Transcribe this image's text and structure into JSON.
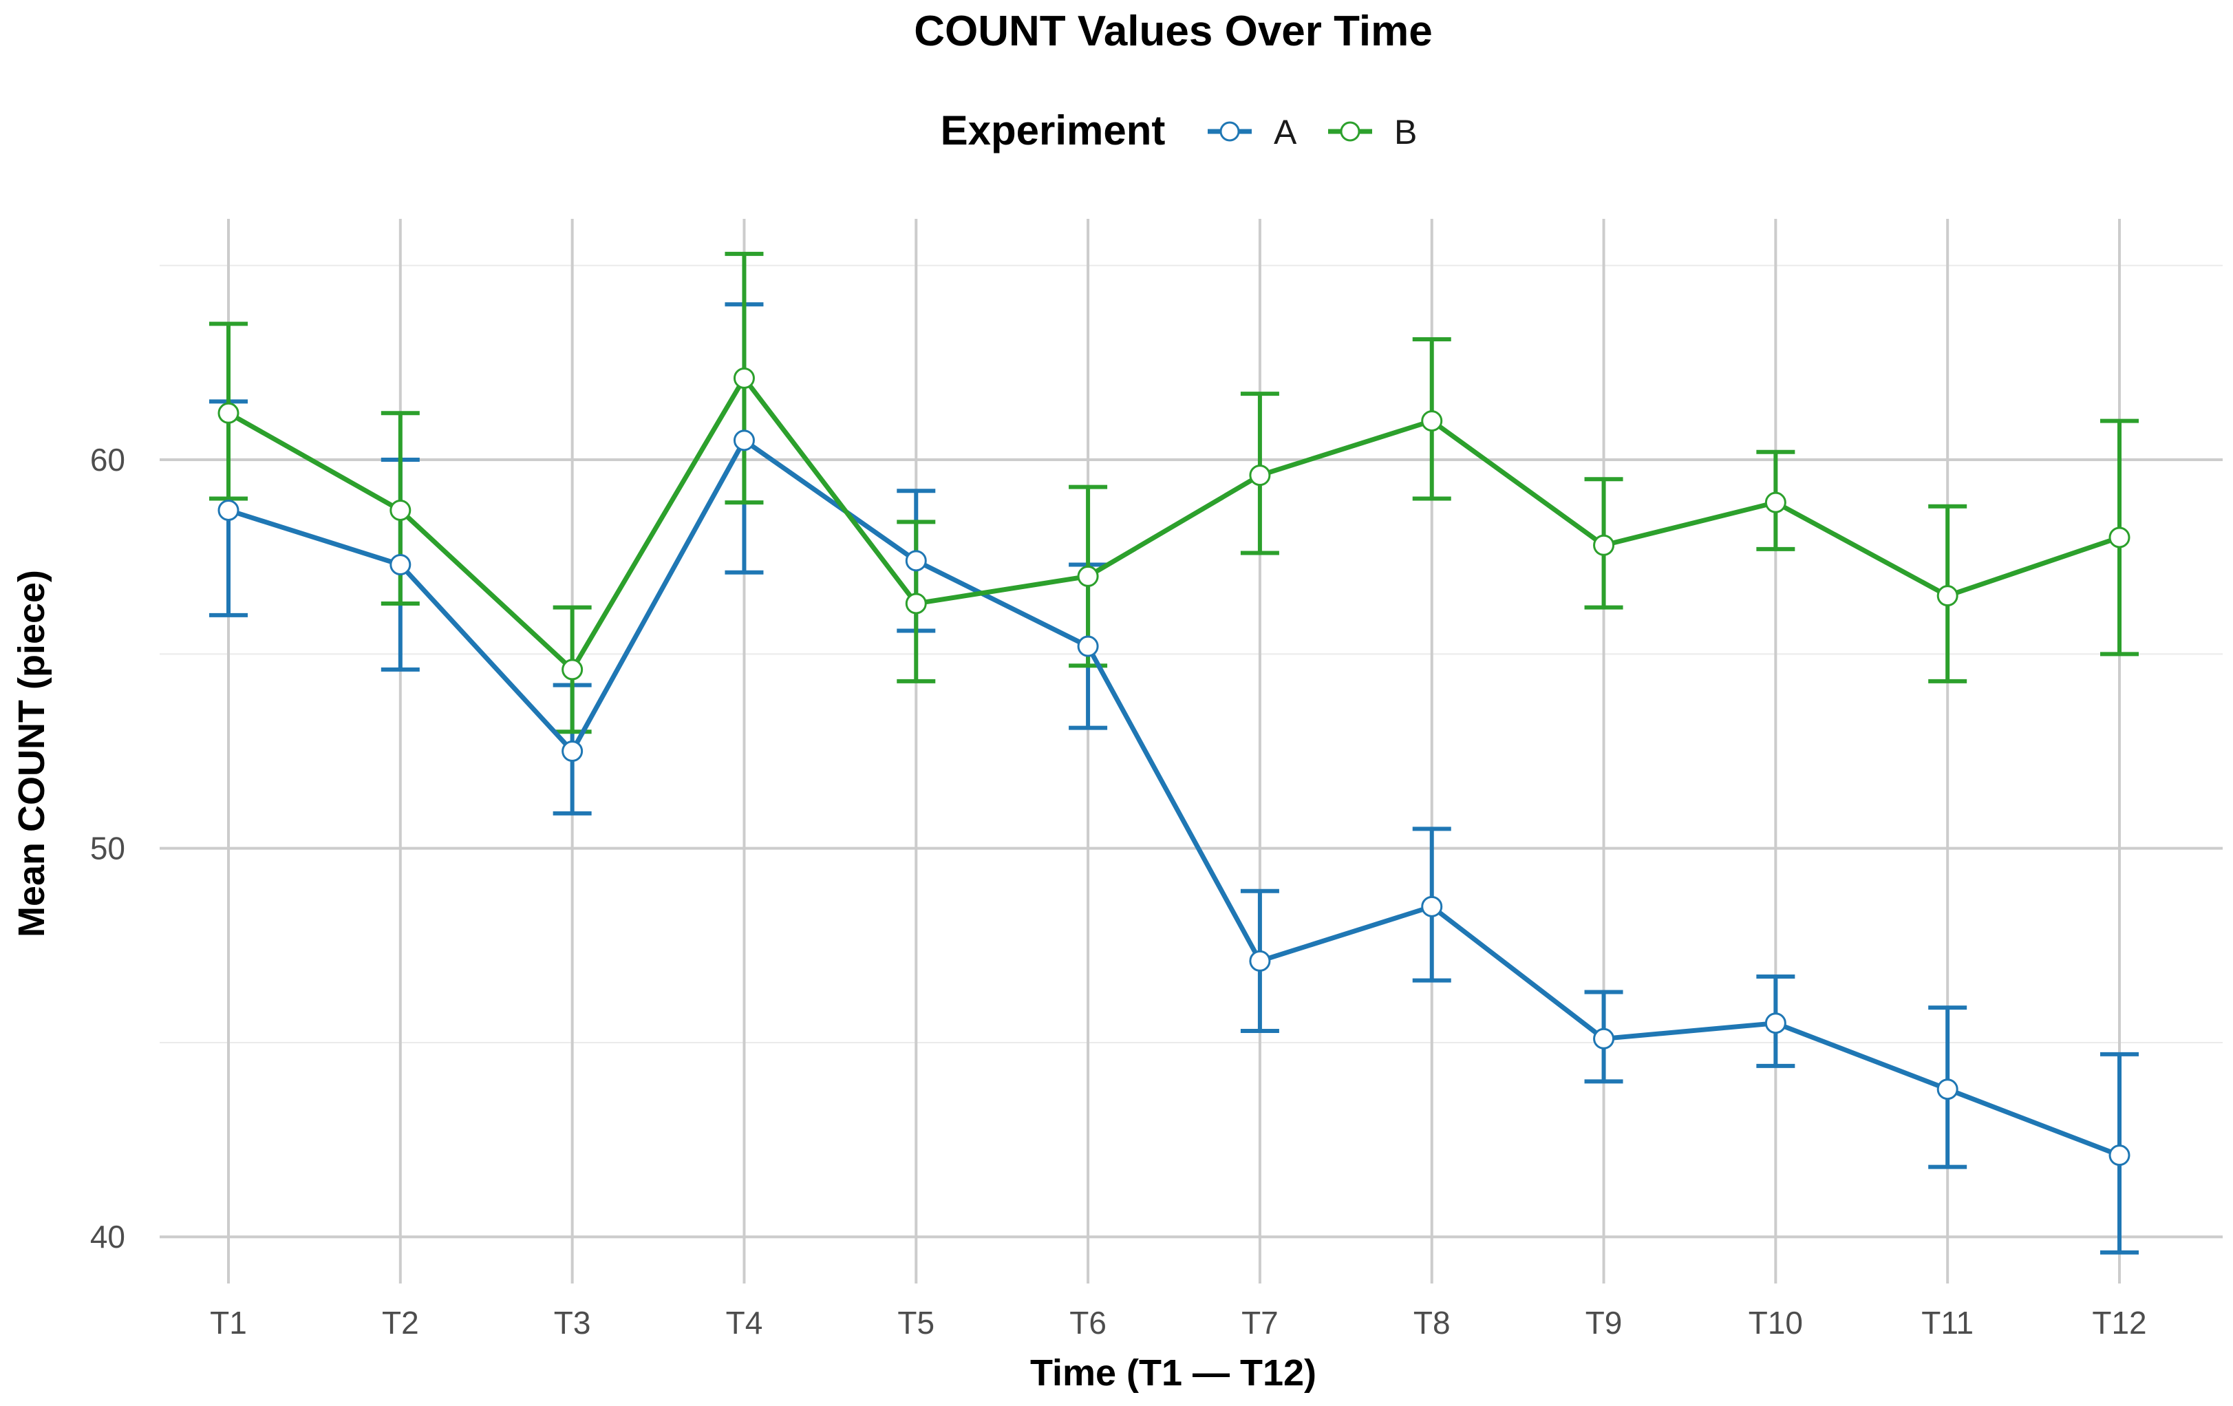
{
  "chart_data": {
    "type": "line",
    "title": "COUNT Values Over Time",
    "xlabel": "Time (T1 — T12)",
    "ylabel": "Mean COUNT (piece)",
    "legend_title": "Experiment",
    "legend_position": "top",
    "grid": true,
    "categories": [
      "T1",
      "T2",
      "T3",
      "T4",
      "T5",
      "T6",
      "T7",
      "T8",
      "T9",
      "T10",
      "T11",
      "T12"
    ],
    "ylim": [
      38.8,
      66.2
    ],
    "y_ticks": [
      40,
      50,
      60
    ],
    "y_minor_ticks": [
      45,
      55,
      65
    ],
    "series": [
      {
        "name": "A",
        "color": "#1f77b4",
        "values": [
          58.7,
          57.3,
          52.5,
          60.5,
          57.4,
          55.2,
          47.1,
          48.5,
          45.1,
          45.5,
          43.8,
          42.1
        ],
        "error_low": [
          56.0,
          54.6,
          50.9,
          57.1,
          55.6,
          53.1,
          45.3,
          46.6,
          44.0,
          44.4,
          41.8,
          39.6
        ],
        "error_high": [
          61.5,
          60.0,
          54.2,
          64.0,
          59.2,
          57.3,
          48.9,
          50.5,
          46.3,
          46.7,
          45.9,
          44.7
        ]
      },
      {
        "name": "B",
        "color": "#2ca02c",
        "values": [
          61.2,
          58.7,
          54.6,
          62.1,
          56.3,
          57.0,
          59.6,
          61.0,
          57.8,
          58.9,
          56.5,
          58.0
        ],
        "error_low": [
          59.0,
          56.3,
          53.0,
          58.9,
          54.3,
          54.7,
          57.6,
          59.0,
          56.2,
          57.7,
          54.3,
          55.0
        ],
        "error_high": [
          63.5,
          61.2,
          56.2,
          65.3,
          58.4,
          59.3,
          61.7,
          63.1,
          59.5,
          60.2,
          58.8,
          61.0
        ]
      }
    ]
  }
}
